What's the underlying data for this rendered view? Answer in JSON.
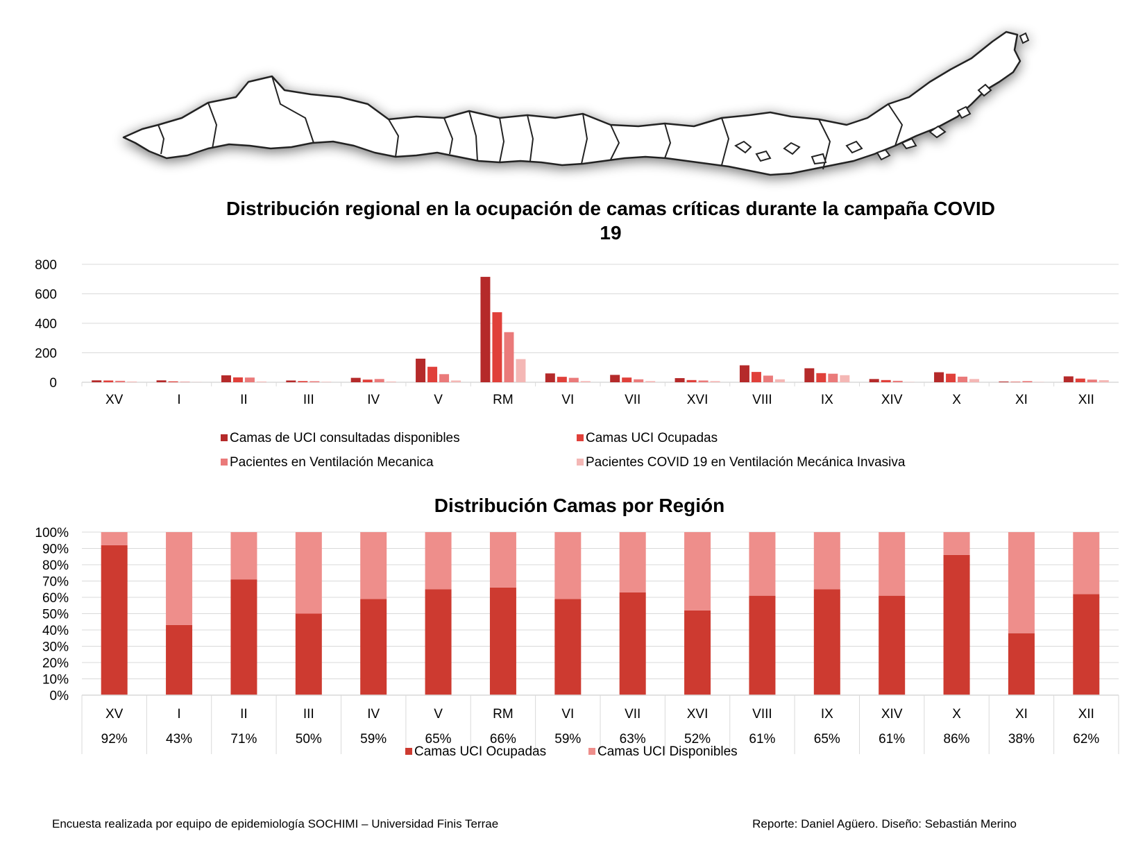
{
  "colors": {
    "series1": "#b52a2a",
    "series2": "#e0403a",
    "series3": "#ea7a7a",
    "series4": "#f4b7b5",
    "occupied": "#cd3a30",
    "available": "#ee8e8b",
    "grid": "#d9d9d9",
    "map_fill": "#ffffff",
    "map_stroke": "#222222",
    "map_shadow": "#9a9a9a"
  },
  "map": {
    "icon": "chile-regions-map-icon"
  },
  "chart_data": [
    {
      "type": "bar",
      "title": "Distribución regional en la ocupación de camas críticas durante la campaña COVID 19",
      "title_lines": [
        "Distribución regional en la ocupación de camas críticas durante la campaña COVID",
        "19"
      ],
      "categories": [
        "XV",
        "I",
        "II",
        "III",
        "IV",
        "V",
        "RM",
        "VI",
        "VII",
        "XVI",
        "VIII",
        "IX",
        "XIV",
        "X",
        "XI",
        "XII"
      ],
      "ylim": [
        0,
        800
      ],
      "yticks": [
        "0",
        "200",
        "400",
        "600",
        "800"
      ],
      "grid": true,
      "legend_position": "bottom",
      "series": [
        {
          "name": "Camas de UCI consultadas disponibles",
          "values": [
            13,
            13,
            47,
            12,
            30,
            160,
            715,
            60,
            50,
            28,
            115,
            95,
            22,
            68,
            5,
            40
          ]
        },
        {
          "name": "Camas UCI Ocupadas",
          "values": [
            12,
            6,
            33,
            8,
            18,
            105,
            475,
            37,
            32,
            15,
            70,
            62,
            15,
            58,
            3,
            25
          ]
        },
        {
          "name": "Pacientes en Ventilación Mecanica",
          "values": [
            10,
            3,
            32,
            7,
            22,
            55,
            340,
            30,
            20,
            12,
            45,
            58,
            10,
            38,
            8,
            18
          ]
        },
        {
          "name": "Pacientes COVID 19 en Ventilación Mecánica Invasiva",
          "values": [
            5,
            1,
            5,
            3,
            5,
            12,
            157,
            8,
            8,
            8,
            20,
            48,
            2,
            22,
            2,
            14
          ]
        }
      ]
    },
    {
      "type": "bar",
      "stacked": true,
      "title": "Distribución Camas por Región",
      "categories": [
        "XV",
        "I",
        "II",
        "III",
        "IV",
        "V",
        "RM",
        "VI",
        "VII",
        "XVI",
        "VIII",
        "IX",
        "XIV",
        "X",
        "XI",
        "XII"
      ],
      "ylim": [
        0,
        100
      ],
      "yticks": [
        "0%",
        "10%",
        "20%",
        "30%",
        "40%",
        "50%",
        "60%",
        "70%",
        "80%",
        "90%",
        "100%"
      ],
      "grid": true,
      "legend_position": "bottom",
      "table_row": [
        "92%",
        "43%",
        "71%",
        "50%",
        "59%",
        "65%",
        "66%",
        "59%",
        "63%",
        "52%",
        "61%",
        "65%",
        "61%",
        "86%",
        "38%",
        "62%"
      ],
      "series": [
        {
          "name": "Camas UCI Ocupadas",
          "values": [
            92,
            43,
            71,
            50,
            59,
            65,
            66,
            59,
            63,
            52,
            61,
            65,
            61,
            86,
            38,
            62
          ]
        },
        {
          "name": "Camas UCI Disponibles",
          "values": [
            8,
            57,
            29,
            50,
            41,
            35,
            34,
            41,
            37,
            48,
            39,
            35,
            39,
            14,
            62,
            38
          ]
        }
      ]
    }
  ],
  "footer": {
    "left": "Encuesta realizada por equipo de epidemiología SOCHIMI – Universidad Finis Terrae",
    "right": "Reporte: Daniel Agüero. Diseño: Sebastián Merino"
  }
}
